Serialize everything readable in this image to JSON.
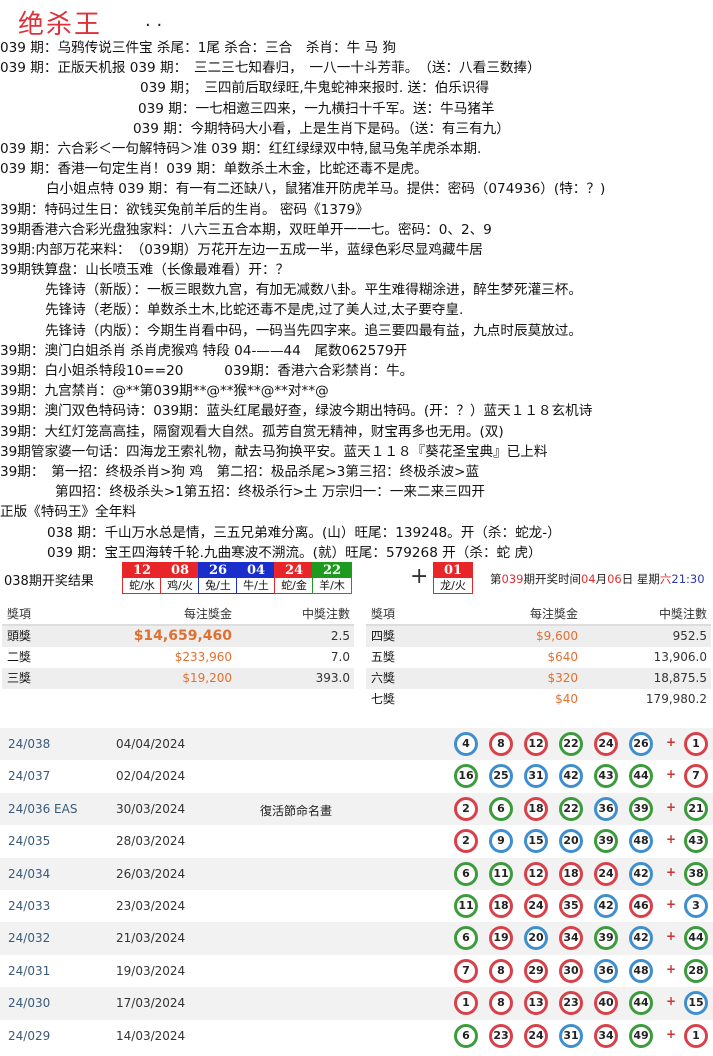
{
  "title": "绝杀王",
  "title_dots": ". .",
  "lines": [
    "039 期：乌鸦传说三件宝 杀尾：1尾 杀合：三合　杀肖：牛 马 狗",
    "039 期：正版天机报 039 期：　三二三七知春归，　一八一十斗芳菲。　（送：八看三数捧）",
    "039 期；　三四前后取绿旺,牛鬼蛇神来报时. 送：伯乐识得",
    "039 期：一七相邀三四来，一九横扫十千军。送：牛马猪羊",
    "039 期：今期特码大小看，上是生肖下是码。（送：有三有九）",
    "039 期：六合彩＜一句解特码＞准 039 期：红红绿绿双中特,鼠马兔羊虎杀本期.",
    "039 期：香港一句定生肖！039 期：单数杀土木金，比蛇还毒不是虎。",
    "白小姐点特 039 期：有一有二还缺八，鼠猪准开防虎羊马。提供：密码（074936）(特：？)",
    "39期：特码过生日：欲钱买兔前羊后的生肖。 密码《1379》",
    "39期香港六合彩光盘独家料：八六三五合本期，双旺单开一一七。密码：0、2、9",
    "39期:内部万花来料：　（039期）万花开左边一五成一半，蓝绿色彩尽显鸡藏牛居",
    "39期铁算盘：山长喷玉难（长像最难看）开：？",
    "先锋诗（新版）：一板三眼数九宫，有加无减数八卦。平生难得糊涂进，醉生梦死灌三杯。",
    "先锋诗（老版）：单数杀土木,比蛇还毒不是虎,过了美人过,太子要夺皇.",
    "先锋诗（内版）：今期生肖看中码，一码当先四字来。追三要四最有益，九点时辰莫放过。",
    "39期：澳门白姐杀肖 杀肖虎猴鸡 特段 04-——44　尾数062579开",
    "39期：白小姐杀特段10==20　　　039期：香港六合彩禁肖：牛。",
    "39期：九宫禁肖：@**第039期**@**猴**@**对**@",
    "39期：澳门双色特码诗：039期：蓝头红尾最好查，绿波今期出特码。(开：？）蓝天１１８玄机诗",
    "39期：大红灯笼高高挂，隔窗观看大自然。孤芳自赏无精神，财宝再多也无用。(双)",
    "39期管家婆一句话：四海龙王索礼物，献去马狗换平安。蓝天１１８『葵花圣宝典』已上料",
    "39期：　第一招：终极杀肖>狗 鸡　第二招：极品杀尾>3第三招：终极杀波>蓝",
    "第四招：终极杀头>1第五招：终极杀行>土 万宗归一：一来二来三四开",
    "正版《特码王》全年料",
    "038 期：千山万水总是情，三五兄弟难分离。(山）旺尾：139248。开（杀：蛇龙-）",
    "039 期：宝王四海转千轮.九曲寒波不溯流。(就）旺尾：579268 开（杀：蛇 虎）"
  ],
  "result": {
    "label": "038期开奖结果",
    "balls": [
      {
        "num": "12",
        "zodiac": "蛇/水",
        "color": "#e8262a"
      },
      {
        "num": "08",
        "zodiac": "鸡/火",
        "color": "#e8262a"
      },
      {
        "num": "26",
        "zodiac": "兔/土",
        "color": "#1a2ecc"
      },
      {
        "num": "04",
        "zodiac": "牛/土",
        "color": "#1a2ecc"
      },
      {
        "num": "24",
        "zodiac": "蛇/金",
        "color": "#e8262a"
      },
      {
        "num": "22",
        "zodiac": "羊/木",
        "color": "#1e9a1e"
      }
    ],
    "plus": "+",
    "special": {
      "num": "01",
      "zodiac": "龙/火",
      "color": "#e8262a"
    },
    "next_draw": {
      "p1": "第",
      "period": "039",
      "p2": "期开奖时间",
      "month": "04",
      "p3": "月",
      "day": "06",
      "p4": "日 星期",
      "weekday": "六",
      "time": "21:30"
    }
  },
  "prizes": {
    "headers": [
      "獎項",
      "每注獎金",
      "中獎注數"
    ],
    "left": [
      {
        "name": "頭獎",
        "amount": "$14,659,460",
        "count": "2.5"
      },
      {
        "name": "二獎",
        "amount": "$233,960",
        "count": "7.0"
      },
      {
        "name": "三獎",
        "amount": "$19,200",
        "count": "393.0"
      }
    ],
    "right": [
      {
        "name": "四獎",
        "amount": "$9,600",
        "count": "952.5"
      },
      {
        "name": "五獎",
        "amount": "$640",
        "count": "13,906.0"
      },
      {
        "name": "六獎",
        "amount": "$320",
        "count": "18,875.5"
      },
      {
        "name": "七獎",
        "amount": "$40",
        "count": "179,980.2"
      }
    ]
  },
  "draws": [
    {
      "no": "24/038",
      "date": "04/04/2024",
      "note": "",
      "numbers": [
        4,
        8,
        12,
        22,
        24,
        26
      ],
      "special": 1
    },
    {
      "no": "24/037",
      "date": "02/04/2024",
      "note": "",
      "numbers": [
        16,
        25,
        31,
        42,
        43,
        44
      ],
      "special": 7
    },
    {
      "no": "24/036 EAS",
      "date": "30/03/2024",
      "note": "復活節命名畫",
      "numbers": [
        2,
        6,
        18,
        22,
        36,
        39
      ],
      "special": 21
    },
    {
      "no": "24/035",
      "date": "28/03/2024",
      "note": "",
      "numbers": [
        2,
        9,
        15,
        20,
        39,
        48
      ],
      "special": 43
    },
    {
      "no": "24/034",
      "date": "26/03/2024",
      "note": "",
      "numbers": [
        6,
        11,
        12,
        18,
        24,
        42
      ],
      "special": 38
    },
    {
      "no": "24/033",
      "date": "23/03/2024",
      "note": "",
      "numbers": [
        11,
        18,
        24,
        35,
        42,
        46
      ],
      "special": 3
    },
    {
      "no": "24/032",
      "date": "21/03/2024",
      "note": "",
      "numbers": [
        6,
        19,
        20,
        34,
        39,
        42
      ],
      "special": 44
    },
    {
      "no": "24/031",
      "date": "19/03/2024",
      "note": "",
      "numbers": [
        7,
        8,
        29,
        30,
        36,
        48
      ],
      "special": 28
    },
    {
      "no": "24/030",
      "date": "17/03/2024",
      "note": "",
      "numbers": [
        1,
        8,
        13,
        23,
        40,
        44
      ],
      "special": 15
    },
    {
      "no": "24/029",
      "date": "14/03/2024",
      "note": "",
      "numbers": [
        6,
        23,
        24,
        31,
        34,
        49
      ],
      "special": 1
    }
  ],
  "draw_plus": "+",
  "ball_colors": {
    "red": "#d9414a",
    "blue": "#3f8fcf",
    "green": "#3c9b3c"
  }
}
